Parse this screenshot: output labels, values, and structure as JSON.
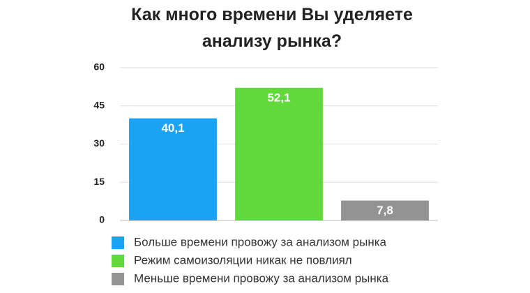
{
  "chart_data": {
    "type": "bar",
    "title": "Как много времени Вы уделяете анализу рынка?",
    "ylim": [
      0,
      60
    ],
    "yticks": [
      0,
      15,
      30,
      45,
      60
    ],
    "grid": true,
    "series": [
      {
        "name": "Больше времени провожу за анализом рынка",
        "color": "#1aa3f5",
        "values": [
          40.1
        ],
        "value_labels": [
          "40,1"
        ]
      },
      {
        "name": "Режим самоизоляции никак не повлиял",
        "color": "#62d93a",
        "values": [
          52.1
        ],
        "value_labels": [
          "52,1"
        ]
      },
      {
        "name": "Меньше времени провожу за анализом рынка",
        "color": "#939393",
        "values": [
          7.8
        ],
        "value_labels": [
          "7,8"
        ]
      }
    ]
  }
}
